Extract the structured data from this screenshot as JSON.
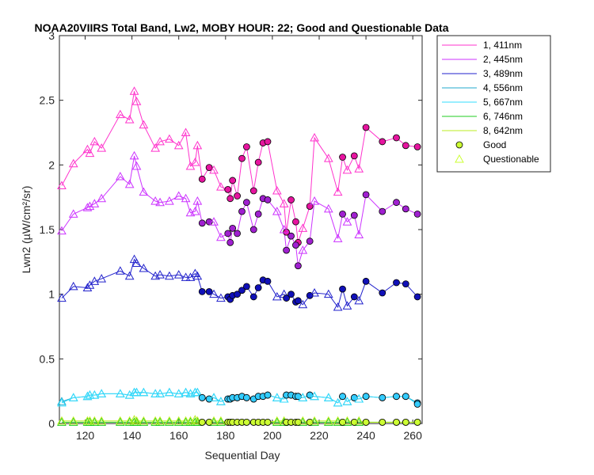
{
  "chart_data": {
    "type": "line",
    "title": "NOAA20VIIRS Total Band, Lw2, MOBY HOUR: 22;  Good and Questionable Data",
    "xlabel": "Sequential Day",
    "ylabel": "Lwn2 (µW/cm²/sr)",
    "xlim": [
      109,
      264
    ],
    "ylim": [
      0,
      3
    ],
    "xticks": [
      "120",
      "140",
      "160",
      "180",
      "200",
      "220",
      "240",
      "260"
    ],
    "yticks": [
      "0",
      "0.5",
      "1",
      "1.5",
      "2",
      "2.5",
      "3"
    ],
    "grid": false,
    "legend_position": "outside-top-right",
    "x": [
      110,
      115,
      121,
      122,
      124,
      127,
      135,
      139,
      141,
      142,
      145,
      150,
      152,
      156,
      160,
      163,
      165,
      167,
      168,
      170,
      173,
      175,
      178,
      181,
      182,
      183,
      185,
      187,
      189,
      192,
      194,
      196,
      198,
      202,
      205,
      206,
      208,
      210,
      211,
      213,
      216,
      218,
      224,
      228,
      230,
      232,
      235,
      237,
      240,
      247,
      253,
      257,
      262
    ],
    "quality": [
      "Q",
      "Q",
      "Q",
      "Q",
      "Q",
      "Q",
      "Q",
      "Q",
      "Q",
      "Q",
      "Q",
      "Q",
      "Q",
      "Q",
      "Q",
      "Q",
      "Q",
      "Q",
      "Q",
      "G",
      "G",
      "Q",
      "Q",
      "G",
      "G",
      "G",
      "G",
      "G",
      "G",
      "G",
      "G",
      "G",
      "G",
      "Q",
      "Q",
      "G",
      "G",
      "G",
      "G",
      "Q",
      "G",
      "Q",
      "Q",
      "Q",
      "G",
      "Q",
      "G",
      "Q",
      "G",
      "G",
      "G",
      "G",
      "G"
    ],
    "series": [
      {
        "name": "1, 411nm",
        "color": "#ff33cc",
        "marker_good": "#e6149f",
        "values": [
          1.84,
          2.01,
          2.12,
          2.09,
          2.18,
          2.13,
          2.39,
          2.35,
          2.57,
          2.49,
          2.31,
          2.13,
          2.18,
          2.2,
          2.15,
          2.25,
          1.99,
          2.02,
          2.15,
          1.89,
          1.98,
          1.96,
          1.83,
          1.81,
          1.74,
          1.88,
          1.76,
          2.05,
          2.14,
          1.8,
          2.02,
          2.17,
          2.18,
          1.8,
          1.7,
          1.48,
          1.73,
          1.56,
          1.4,
          1.51,
          1.68,
          2.21,
          2.05,
          1.79,
          2.06,
          1.96,
          2.07,
          1.97,
          2.29,
          2.18,
          2.21,
          2.15,
          2.14
        ]
      },
      {
        "name": "2, 445nm",
        "color": "#cc33ff",
        "marker_good": "#a020d0",
        "values": [
          1.49,
          1.62,
          1.67,
          1.68,
          1.7,
          1.74,
          1.91,
          1.85,
          2.07,
          1.99,
          1.79,
          1.72,
          1.71,
          1.72,
          1.76,
          1.74,
          1.63,
          1.64,
          1.72,
          1.55,
          1.56,
          1.56,
          1.44,
          1.47,
          1.4,
          1.51,
          1.47,
          1.64,
          1.71,
          1.5,
          1.62,
          1.74,
          1.73,
          1.64,
          1.5,
          1.34,
          1.45,
          1.38,
          1.22,
          1.34,
          1.41,
          1.72,
          1.66,
          1.43,
          1.62,
          1.56,
          1.61,
          1.46,
          1.77,
          1.64,
          1.71,
          1.66,
          1.62
        ]
      },
      {
        "name": "3, 489nm",
        "color": "#2222cc",
        "marker_good": "#1010b8",
        "values": [
          0.97,
          1.06,
          1.05,
          1.07,
          1.1,
          1.12,
          1.18,
          1.14,
          1.27,
          1.24,
          1.2,
          1.14,
          1.15,
          1.14,
          1.15,
          1.13,
          1.13,
          1.16,
          1.14,
          1.02,
          1.02,
          1.0,
          0.97,
          0.98,
          0.96,
          0.99,
          1.0,
          1.03,
          1.06,
          0.98,
          1.05,
          1.11,
          1.1,
          0.98,
          1.0,
          0.97,
          1.0,
          0.94,
          0.95,
          0.92,
          0.99,
          1.01,
          1.0,
          0.9,
          1.04,
          0.91,
          0.98,
          0.95,
          1.1,
          1.01,
          1.09,
          1.08,
          0.98
        ]
      },
      {
        "name": "4, 556nm",
        "color": "#22aacc",
        "marker_good": "#2299cc",
        "values": [
          0.17,
          0.2,
          0.21,
          0.22,
          0.22,
          0.23,
          0.23,
          0.22,
          0.24,
          0.24,
          0.24,
          0.23,
          0.23,
          0.24,
          0.23,
          0.24,
          0.23,
          0.24,
          0.24,
          0.2,
          0.19,
          0.2,
          0.17,
          0.19,
          0.19,
          0.2,
          0.2,
          0.21,
          0.2,
          0.19,
          0.21,
          0.21,
          0.22,
          0.2,
          0.19,
          0.22,
          0.22,
          0.21,
          0.21,
          0.2,
          0.22,
          0.21,
          0.2,
          0.16,
          0.21,
          0.17,
          0.2,
          0.19,
          0.21,
          0.2,
          0.21,
          0.21,
          0.16
        ]
      },
      {
        "name": "5, 667nm",
        "color": "#33ddff",
        "marker_good": "#33ccff",
        "values": [
          0.16,
          0.2,
          0.21,
          0.22,
          0.22,
          0.23,
          0.23,
          0.22,
          0.24,
          0.24,
          0.24,
          0.23,
          0.23,
          0.24,
          0.23,
          0.24,
          0.23,
          0.24,
          0.24,
          0.2,
          0.19,
          0.2,
          0.17,
          0.19,
          0.19,
          0.2,
          0.2,
          0.21,
          0.2,
          0.19,
          0.21,
          0.21,
          0.22,
          0.2,
          0.19,
          0.22,
          0.22,
          0.21,
          0.21,
          0.2,
          0.22,
          0.21,
          0.2,
          0.16,
          0.21,
          0.17,
          0.2,
          0.19,
          0.21,
          0.2,
          0.21,
          0.21,
          0.15
        ]
      },
      {
        "name": "6, 746nm",
        "color": "#22cc22",
        "marker_good": "#22cc22",
        "values": [
          0.01,
          0.01,
          0.01,
          0.01,
          0.01,
          0.01,
          0.01,
          0.01,
          0.01,
          0.01,
          0.01,
          0.01,
          0.01,
          0.01,
          0.01,
          0.01,
          0.01,
          0.01,
          0.01,
          0.01,
          0.01,
          0.01,
          0.01,
          0.01,
          0.01,
          0.01,
          0.01,
          0.01,
          0.01,
          0.01,
          0.01,
          0.01,
          0.01,
          0.01,
          0.01,
          0.01,
          0.01,
          0.01,
          0.01,
          0.01,
          0.01,
          0.01,
          0.01,
          0.01,
          0.01,
          0.01,
          0.01,
          0.01,
          0.01,
          0.01,
          0.01,
          0.01,
          0.01
        ]
      },
      {
        "name": "8, 642nm",
        "color": "#bbee22",
        "marker_good": "#ccff33",
        "values": [
          0.02,
          0.02,
          0.02,
          0.02,
          0.02,
          0.02,
          0.02,
          0.02,
          0.03,
          0.02,
          0.02,
          0.02,
          0.02,
          0.02,
          0.02,
          0.02,
          0.02,
          0.03,
          0.02,
          0.01,
          0.01,
          0.02,
          0.02,
          0.01,
          0.01,
          0.01,
          0.01,
          0.01,
          0.01,
          0.01,
          0.01,
          0.01,
          0.01,
          0.02,
          0.02,
          0.01,
          0.01,
          0.01,
          0.01,
          0.02,
          0.01,
          0.02,
          0.02,
          0.02,
          0.01,
          0.02,
          0.01,
          0.02,
          0.01,
          0.01,
          0.01,
          0.01,
          0.01
        ]
      }
    ],
    "legend": [
      "1, 411nm",
      "2, 445nm",
      "3, 489nm",
      "4, 556nm",
      "5, 667nm",
      "6, 746nm",
      "8, 642nm",
      "Good",
      "Questionable"
    ],
    "legend_colors": [
      "#ff33cc",
      "#cc33ff",
      "#2222cc",
      "#22aacc",
      "#33ddff",
      "#22cc22",
      "#bbee22"
    ],
    "good_marker_color": "#ccff33",
    "questionable_marker_color": "#ccff33"
  }
}
